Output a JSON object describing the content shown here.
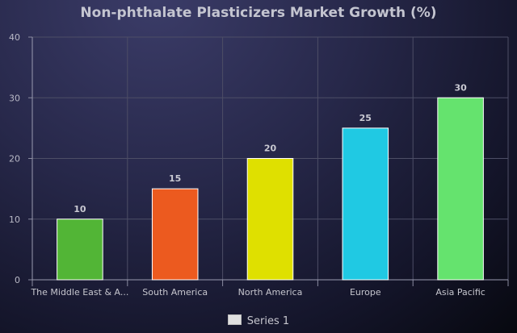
{
  "chart_data": {
    "type": "bar",
    "title": "Non-phthalate Plasticizers Market Growth (%)",
    "categories": [
      "The Middle East & A...",
      "South America",
      "North America",
      "Europe",
      "Asia Pacific"
    ],
    "series": [
      {
        "name": "Series 1",
        "values": [
          10,
          15,
          20,
          25,
          30
        ]
      }
    ],
    "colors": [
      "#52b536",
      "#ec5a1f",
      "#dfe000",
      "#20c9e3",
      "#65e36e"
    ],
    "ylim": [
      0,
      40
    ],
    "yticks": [
      0,
      10,
      20,
      30,
      40
    ],
    "grid": true,
    "legend": "bottom"
  }
}
